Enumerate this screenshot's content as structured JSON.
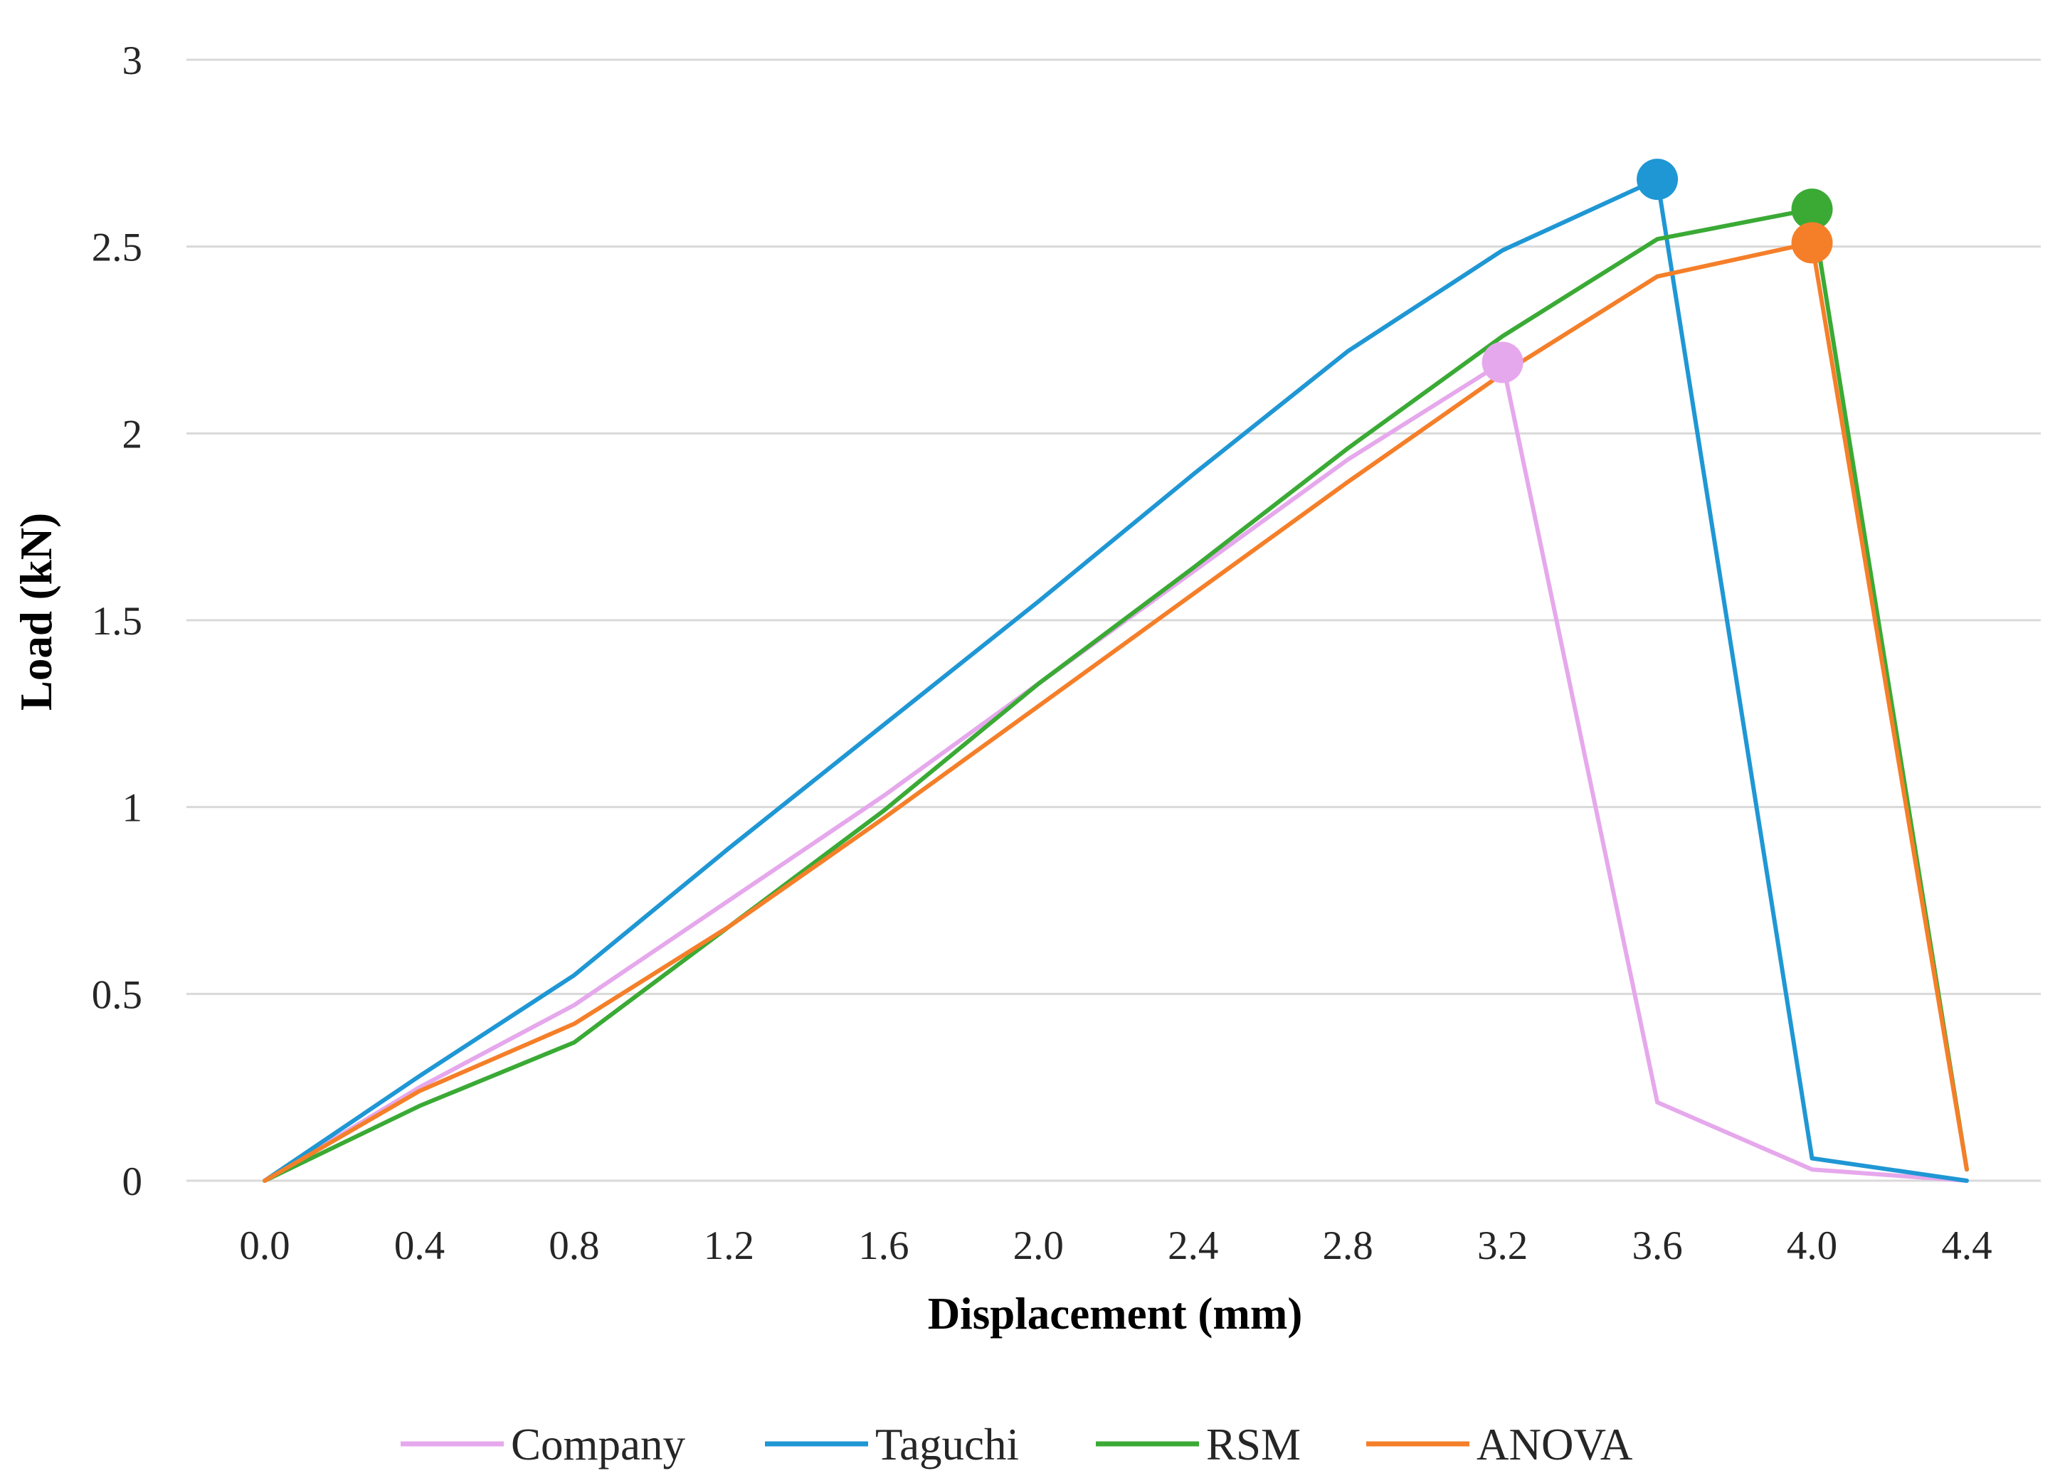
{
  "chart_data": {
    "type": "line",
    "title": "",
    "xlabel": "Displacement (mm)",
    "ylabel": "Load (kN)",
    "xlim": [
      0.0,
      4.4
    ],
    "ylim": [
      0,
      3
    ],
    "x_ticks": [
      "0.0",
      "0.4",
      "0.8",
      "1.2",
      "1.6",
      "2.0",
      "2.4",
      "2.8",
      "3.2",
      "3.6",
      "4.0",
      "4.4"
    ],
    "y_ticks": [
      "0",
      "0.5",
      "1",
      "1.5",
      "2",
      "2.5",
      "3"
    ],
    "grid": "horizontal",
    "legend_position": "bottom",
    "series": [
      {
        "name": "Company",
        "color": "#e6a8ec",
        "x": [
          0.0,
          0.4,
          0.8,
          1.6,
          2.0,
          2.8,
          3.2,
          3.6,
          4.0,
          4.4
        ],
        "y": [
          0.0,
          0.25,
          0.47,
          1.03,
          1.33,
          1.93,
          2.19,
          0.21,
          0.03,
          0.0
        ],
        "peak": {
          "x": 3.2,
          "y": 2.19
        }
      },
      {
        "name": "Taguchi",
        "color": "#1f97d4",
        "x": [
          0.0,
          0.4,
          0.8,
          1.2,
          1.6,
          2.0,
          2.4,
          2.8,
          3.2,
          3.6,
          4.0,
          4.4
        ],
        "y": [
          0.0,
          0.28,
          0.55,
          0.89,
          1.22,
          1.55,
          1.89,
          2.22,
          2.49,
          2.68,
          0.06,
          0.0
        ],
        "peak": {
          "x": 3.6,
          "y": 2.68
        }
      },
      {
        "name": "RSM",
        "color": "#3aaa35",
        "x": [
          0.0,
          0.4,
          0.8,
          1.2,
          1.6,
          2.0,
          2.4,
          2.8,
          3.2,
          3.6,
          4.0,
          4.4
        ],
        "y": [
          0.0,
          0.2,
          0.37,
          0.68,
          0.99,
          1.33,
          1.64,
          1.96,
          2.26,
          2.52,
          2.6,
          0.03
        ],
        "peak": {
          "x": 4.0,
          "y": 2.6
        }
      },
      {
        "name": "ANOVA",
        "color": "#f57f29",
        "x": [
          0.0,
          0.4,
          0.8,
          1.2,
          1.6,
          2.0,
          2.4,
          2.8,
          3.2,
          3.6,
          4.0,
          4.4
        ],
        "y": [
          0.0,
          0.24,
          0.42,
          0.68,
          0.97,
          1.27,
          1.57,
          1.87,
          2.16,
          2.42,
          2.51,
          0.03
        ],
        "peak": {
          "x": 4.0,
          "y": 2.51
        }
      }
    ]
  }
}
